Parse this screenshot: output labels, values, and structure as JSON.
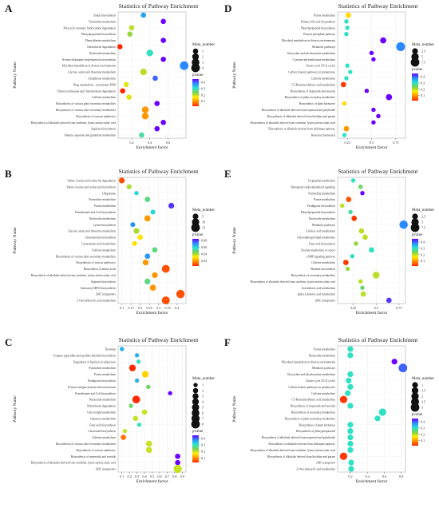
{
  "figure": {
    "background": "#ffffff"
  },
  "common": {
    "title": "Statistics of Pathway Enrichment",
    "xlabel": "Enrichment factor",
    "ylabel": "Pathway Name",
    "size_legend_title": "Meta_number",
    "color_legend_title": "pvalue",
    "color_scale": [
      "#ff2a00",
      "#ff8c00",
      "#ffee00",
      "#7ad151",
      "#29e3d0",
      "#2a8cff",
      "#6a00ff"
    ]
  },
  "chart_data": [
    {
      "panel": "A",
      "type": "scatter",
      "title": "Statistics of Pathway Enrichment",
      "xlabel": "Enrichment factor",
      "ylabel": "Pathway Name",
      "xlim": [
        0.05,
        0.8
      ],
      "xticks": [
        0.2,
        0.4,
        0.6
      ],
      "size_legend": {
        "title": "Meta_number",
        "values": [
          1,
          2,
          3,
          4
        ]
      },
      "color_legend": {
        "title": "pvalue",
        "min": 0.02,
        "max": 0.45,
        "ticks": [
          0.1,
          0.2,
          0.3,
          0.4
        ]
      },
      "categories": [
        "Zeatin biosynthesis",
        "Pyrimidine metabolism",
        "Polycyclic aromatic hydrocarbon degradation",
        "Phenylpropanoid biosynthesis",
        "Phenylalanine metabolism",
        "Nitrotoluene degradation",
        "Nucleotide metabolism",
        "Neomycin/kanamycin/gentamicin biosynthesis",
        "Microbial metabolism in diverse environments",
        "Glycine, serine and threonine metabolism",
        "Glutathione metabolism",
        "Drug metabolism - cytochrome P450",
        "Chlorocyclohexane and chlorobenzene degradation",
        "Caffeine metabolism",
        "Biosynthesis of various plant secondary metabolites",
        "Biosynthesis of various other secondary metabolites",
        "Biosynthesis of various antibiotics",
        "Biosynthesis of alkaloids derived from ornithine, lysine and nicotinic acid",
        "Arginine biosynthesis",
        "Alanine, aspartate and glutamate metabolism"
      ],
      "points": [
        {
          "x": 0.33,
          "size": 1,
          "p": 0.36
        },
        {
          "x": 0.55,
          "size": 1,
          "p": 0.45
        },
        {
          "x": 0.2,
          "size": 1,
          "p": 0.2
        },
        {
          "x": 0.18,
          "size": 1,
          "p": 0.22
        },
        {
          "x": 0.55,
          "size": 1,
          "p": 0.45
        },
        {
          "x": 0.07,
          "size": 1,
          "p": 0.02
        },
        {
          "x": 0.4,
          "size": 2,
          "p": 0.3
        },
        {
          "x": 0.55,
          "size": 1,
          "p": 0.45
        },
        {
          "x": 0.78,
          "size": 4,
          "p": 0.38
        },
        {
          "x": 0.33,
          "size": 2,
          "p": 0.2
        },
        {
          "x": 0.46,
          "size": 1,
          "p": 0.4
        },
        {
          "x": 0.14,
          "size": 1,
          "p": 0.18
        },
        {
          "x": 0.1,
          "size": 1,
          "p": 0.02
        },
        {
          "x": 0.17,
          "size": 1,
          "p": 0.18
        },
        {
          "x": 0.48,
          "size": 1,
          "p": 0.45
        },
        {
          "x": 0.35,
          "size": 2,
          "p": 0.1
        },
        {
          "x": 0.35,
          "size": 2,
          "p": 0.1
        },
        {
          "x": 0.55,
          "size": 1,
          "p": 0.45
        },
        {
          "x": 0.48,
          "size": 1,
          "p": 0.45
        },
        {
          "x": 0.31,
          "size": 1,
          "p": 0.28
        }
      ]
    },
    {
      "panel": "B",
      "type": "scatter",
      "title": "Statistics of Pathway Enrichment",
      "xlabel": "Enrichment factor",
      "ylabel": "Pathway Name",
      "xlim": [
        0.08,
        0.45
      ],
      "xticks": [
        0.1,
        0.15,
        0.2,
        0.25,
        0.3,
        0.35,
        0.4
      ],
      "size_legend": {
        "title": "Meta_number",
        "values": [
          5,
          10,
          15
        ]
      },
      "color_legend": {
        "title": "pvalue",
        "min": 0.005,
        "max": 0.085,
        "ticks": [
          0.02,
          0.04,
          0.06,
          0.08
        ]
      },
      "categories": [
        "Valine, leucine and isoleucine degradation",
        "Valine, leucine and isoleucine biosynthesis",
        "Ubiquinone",
        "Pyrimidine metabolism",
        "Purine metabolism",
        "Pantothenate and CoA biosynthesis",
        "Nucleotide metabolism",
        "Lysine biosynthesis",
        "Glycine, serine and threonine metabolism",
        "Glucosinolate biosynthesis",
        "Cyanoamino acid metabolism",
        "Caffeine metabolism",
        "Biosynthesis of various other secondary metabolites",
        "Biosynthesis of various antibiotics",
        "Biosynthesis of amino acids",
        "Biosynthesis of alkaloids derived from ornithine, lysine and nicotinic acid",
        "Arginine biosynthesis",
        "Aminoacyl-tRNA biosynthesis",
        "ABC transporters",
        "2-Oxocarboxylic acid metabolism"
      ],
      "points": [
        {
          "x": 0.1,
          "size": 5,
          "p": 0.01
        },
        {
          "x": 0.14,
          "size": 3,
          "p": 0.04
        },
        {
          "x": 0.18,
          "size": 2,
          "p": 0.06
        },
        {
          "x": 0.24,
          "size": 4,
          "p": 0.05
        },
        {
          "x": 0.37,
          "size": 5,
          "p": 0.08
        },
        {
          "x": 0.27,
          "size": 3,
          "p": 0.06
        },
        {
          "x": 0.24,
          "size": 6,
          "p": 0.02
        },
        {
          "x": 0.16,
          "size": 3,
          "p": 0.07
        },
        {
          "x": 0.18,
          "size": 5,
          "p": 0.04
        },
        {
          "x": 0.2,
          "size": 4,
          "p": 0.03
        },
        {
          "x": 0.17,
          "size": 3,
          "p": 0.03
        },
        {
          "x": 0.28,
          "size": 4,
          "p": 0.05
        },
        {
          "x": 0.24,
          "size": 4,
          "p": 0.07
        },
        {
          "x": 0.23,
          "size": 5,
          "p": 0.02
        },
        {
          "x": 0.34,
          "size": 12,
          "p": 0.01
        },
        {
          "x": 0.28,
          "size": 5,
          "p": 0.02
        },
        {
          "x": 0.24,
          "size": 5,
          "p": 0.05
        },
        {
          "x": 0.27,
          "size": 6,
          "p": 0.02
        },
        {
          "x": 0.42,
          "size": 14,
          "p": 0.01
        },
        {
          "x": 0.34,
          "size": 12,
          "p": 0.01
        }
      ]
    },
    {
      "panel": "C",
      "type": "scatter",
      "title": "Statistics of Pathway Enrichment",
      "xlabel": "Enrichment factor",
      "ylabel": "Pathway Name",
      "xlim": [
        0.05,
        0.95
      ],
      "xticks": [
        0.1,
        0.2,
        0.3,
        0.4,
        0.5,
        0.6,
        0.7,
        0.8,
        0.9
      ],
      "size_legend": {
        "title": "Meta_number",
        "values": [
          1,
          2,
          3,
          4,
          5,
          6,
          7,
          8
        ]
      },
      "color_legend": {
        "title": "pvalue",
        "min": 0.03,
        "max": 0.45,
        "ticks": [
          0.1,
          0.2,
          0.3,
          0.4
        ]
      },
      "categories": [
        "Thiamine",
        "Tropane, piperidine and pyridine alkaloid biosynthesis",
        "Regulation of lipolysis in adipocytes",
        "Pyrimidine metabolism",
        "Purine metabolism",
        "Prodigiosin biosynthesis",
        "Pentose and glucuronate interconversions",
        "Pantothenate and CoA biosynthesis",
        "Nucleotide metabolism",
        "Nitrotoluene degradation",
        "Glycerolipid metabolism",
        "Galactose metabolism",
        "Fatty acid biosynthesis",
        "Carotenoid biosynthesis",
        "Caffeine metabolism",
        "Biosynthesis of various other secondary metabolites",
        "Biosynthesis of various antibiotics",
        "Biosynthesis of terpenoids and steroids",
        "Biosynthesis of alkaloids derived from ornithine, lysine and nicotinic acid",
        "ABC transporters"
      ],
      "points": [
        {
          "x": 0.1,
          "size": 1,
          "p": 0.35
        },
        {
          "x": 0.3,
          "size": 1,
          "p": 0.35
        },
        {
          "x": 0.32,
          "size": 1,
          "p": 0.3
        },
        {
          "x": 0.24,
          "size": 4,
          "p": 0.03
        },
        {
          "x": 0.41,
          "size": 4,
          "p": 0.15
        },
        {
          "x": 0.3,
          "size": 1,
          "p": 0.35
        },
        {
          "x": 0.45,
          "size": 1,
          "p": 0.25
        },
        {
          "x": 0.74,
          "size": 1,
          "p": 0.45
        },
        {
          "x": 0.29,
          "size": 6,
          "p": 0.03
        },
        {
          "x": 0.22,
          "size": 1,
          "p": 0.25
        },
        {
          "x": 0.4,
          "size": 2,
          "p": 0.2
        },
        {
          "x": 0.28,
          "size": 2,
          "p": 0.2
        },
        {
          "x": 0.33,
          "size": 1,
          "p": 0.3
        },
        {
          "x": 0.14,
          "size": 1,
          "p": 0.2
        },
        {
          "x": 0.12,
          "size": 2,
          "p": 0.08
        },
        {
          "x": 0.46,
          "size": 3,
          "p": 0.2
        },
        {
          "x": 0.46,
          "size": 3,
          "p": 0.2
        },
        {
          "x": 0.84,
          "size": 2,
          "p": 0.45
        },
        {
          "x": 0.84,
          "size": 2,
          "p": 0.45
        },
        {
          "x": 0.84,
          "size": 7,
          "p": 0.2
        }
      ]
    },
    {
      "panel": "D",
      "type": "scatter",
      "title": "Statistics of Pathway Enrichment",
      "xlabel": "Enrichment factor",
      "ylabel": "Pathway Name",
      "xlim": [
        0.15,
        0.85
      ],
      "xticks": [
        0.25,
        0.5,
        0.75
      ],
      "size_legend": {
        "title": "Meta_number",
        "values": [
          2.5,
          5.0,
          7.5
        ]
      },
      "color_legend": {
        "title": "pvalue",
        "min": 0.02,
        "max": 0.45,
        "ticks": [
          0.1,
          0.2,
          0.3,
          0.4
        ]
      },
      "categories": [
        "Purine metabolism",
        "Primary bile acid biosynthesis",
        "Phenylpropanoid biosynthesis",
        "Pentose phosphate pathway",
        "Microbial metabolism in diverse environments",
        "Metabolic pathways",
        "Glyoxylate and dicarboxylate metabolism",
        "Cysteine and methionine metabolism",
        "Citrate cycle (TCA cycle)",
        "Carbon fixation pathways in prokaryotes",
        "Caffeine metabolism",
        "C5-Branched dibasic acid metabolism",
        "Biosynthesis of terpenoids and steroids",
        "Biosynthesis of plant secondary metabolites",
        "Biosynthesis of plant hormones",
        "Biosynthesis of alkaloids derived from terpenoid and polyketide",
        "Biosynthesis of alkaloids derived from histidine and purine",
        "Biosynthesis of alkaloids derived from ornithine, lysine and nicotinic acid",
        "Biosynthesis of alkaloids derived from shikimate pathway",
        "Bacterial chemotaxis"
      ],
      "points": [
        {
          "x": 0.26,
          "size": 2,
          "p": 0.15
        },
        {
          "x": 0.24,
          "size": 1,
          "p": 0.3
        },
        {
          "x": 0.25,
          "size": 1,
          "p": 0.3
        },
        {
          "x": 0.24,
          "size": 1,
          "p": 0.3
        },
        {
          "x": 0.62,
          "size": 3,
          "p": 0.45
        },
        {
          "x": 0.8,
          "size": 8,
          "p": 0.38
        },
        {
          "x": 0.5,
          "size": 1,
          "p": 0.45
        },
        {
          "x": 0.52,
          "size": 1,
          "p": 0.45
        },
        {
          "x": 0.25,
          "size": 1,
          "p": 0.3
        },
        {
          "x": 0.28,
          "size": 1,
          "p": 0.3
        },
        {
          "x": 0.24,
          "size": 1,
          "p": 0.3
        },
        {
          "x": 0.21,
          "size": 2,
          "p": 0.03
        },
        {
          "x": 0.45,
          "size": 1,
          "p": 0.45
        },
        {
          "x": 0.68,
          "size": 3,
          "p": 0.45
        },
        {
          "x": 0.22,
          "size": 1,
          "p": 0.15
        },
        {
          "x": 0.52,
          "size": 1,
          "p": 0.45
        },
        {
          "x": 0.57,
          "size": 1,
          "p": 0.45
        },
        {
          "x": 0.52,
          "size": 1,
          "p": 0.45
        },
        {
          "x": 0.24,
          "size": 2,
          "p": 0.1
        },
        {
          "x": 0.22,
          "size": 1,
          "p": 0.3
        }
      ]
    },
    {
      "panel": "E",
      "type": "scatter",
      "title": "Statistics of Pathway Enrichment",
      "xlabel": "Enrichment factor",
      "ylabel": "Pathway Name",
      "xlim": [
        0.08,
        0.82
      ],
      "xticks": [
        0.25,
        0.5,
        0.75
      ],
      "size_legend": {
        "title": "Meta_number",
        "values": [
          2.5,
          5.0,
          7.5
        ]
      },
      "color_legend": {
        "title": "pvalue",
        "min": 0.02,
        "max": 0.45,
        "ticks": [
          0.1,
          0.2,
          0.3,
          0.4
        ]
      },
      "categories": [
        "Tryptophan metabolism",
        "Retrograde endocannabinoid signaling",
        "Pyrimidine metabolism",
        "Purine metabolism",
        "Prodigiosin biosynthesis",
        "Phenylpropanoid biosynthesis",
        "Nucleotide metabolism",
        "Metabolic pathways",
        "Linoleic acid metabolism",
        "Glycerophospholipid metabolism",
        "Fatty acid biosynthesis",
        "Choline metabolism in cancer",
        "cAMP signaling pathway",
        "Caffeine metabolism",
        "Betalain biosynthesis",
        "Biosynthesis of secondary metabolites",
        "Biosynthesis of alkaloids derived from ornithine, lysine and nicotinic acid",
        "Arachidonic acid metabolism",
        "alpha-Linolenic acid metabolism",
        "ABC transporters"
      ],
      "points": [
        {
          "x": 0.25,
          "size": 1,
          "p": 0.3
        },
        {
          "x": 0.33,
          "size": 1,
          "p": 0.25
        },
        {
          "x": 0.35,
          "size": 1,
          "p": 0.45
        },
        {
          "x": 0.2,
          "size": 2,
          "p": 0.05
        },
        {
          "x": 0.13,
          "size": 1,
          "p": 0.2
        },
        {
          "x": 0.22,
          "size": 1,
          "p": 0.28
        },
        {
          "x": 0.26,
          "size": 2,
          "p": 0.03
        },
        {
          "x": 0.8,
          "size": 7,
          "p": 0.38
        },
        {
          "x": 0.34,
          "size": 2,
          "p": 0.2
        },
        {
          "x": 0.38,
          "size": 2,
          "p": 0.2
        },
        {
          "x": 0.28,
          "size": 1,
          "p": 0.22
        },
        {
          "x": 0.45,
          "size": 2,
          "p": 0.3
        },
        {
          "x": 0.24,
          "size": 1,
          "p": 0.3
        },
        {
          "x": 0.17,
          "size": 2,
          "p": 0.03
        },
        {
          "x": 0.19,
          "size": 1,
          "p": 0.22
        },
        {
          "x": 0.5,
          "size": 4,
          "p": 0.2
        },
        {
          "x": 0.33,
          "size": 1,
          "p": 0.2
        },
        {
          "x": 0.35,
          "size": 1,
          "p": 0.25
        },
        {
          "x": 0.36,
          "size": 2,
          "p": 0.2
        },
        {
          "x": 0.64,
          "size": 2,
          "p": 0.42
        }
      ]
    },
    {
      "panel": "F",
      "type": "scatter",
      "title": "Statistics of Pathway Enrichment",
      "xlabel": "Enrichment factor",
      "ylabel": "Pathway Name",
      "xlim": [
        0.05,
        0.85
      ],
      "xticks": [
        0.2,
        0.4,
        0.6,
        0.8
      ],
      "size_legend": {
        "title": "Meta_number",
        "values": [
          1.0,
          1.5,
          2.0,
          2.5,
          3.0
        ]
      },
      "color_legend": {
        "title": "pvalue",
        "min": 0.02,
        "max": 0.45,
        "ticks": [
          0.1,
          0.2,
          0.3,
          0.4
        ]
      },
      "categories": [
        "Purine metabolism",
        "Nucleotide metabolism",
        "Microbial metabolism in diverse environments",
        "Metabolic pathways",
        "Glyoxylate and dicarboxylate metabolism",
        "Citrate cycle (TCA cycle)",
        "Carbon fixation pathways in prokaryotes",
        "Caffeine metabolism",
        "C5-Branched dibasic acid metabolism",
        "Biosynthesis of terpenoids and steroids",
        "Biosynthesis of secondary metabolites",
        "Biosynthesis of plant secondary metabolites",
        "Biosynthesis of plant hormones",
        "Biosynthesis of phenylpropanoids",
        "Biosynthesis of alkaloids derived from terpenoid and polyketide",
        "Biosynthesis of alkaloids derived from shikimate pathway",
        "Biosynthesis of alkaloids derived from ornithine, lysine and nicotinic acid",
        "Biosynthesis of alkaloids derived from histidine and purine",
        "ABC transporter",
        "2-Oxocarboxylic acid metabolism"
      ],
      "points": [
        {
          "x": 0.2,
          "size": 1,
          "p": 0.3
        },
        {
          "x": 0.2,
          "size": 1,
          "p": 0.3
        },
        {
          "x": 0.72,
          "size": 1,
          "p": 0.45
        },
        {
          "x": 0.82,
          "size": 3,
          "p": 0.4
        },
        {
          "x": 0.2,
          "size": 1,
          "p": 0.3
        },
        {
          "x": 0.18,
          "size": 1,
          "p": 0.3
        },
        {
          "x": 0.2,
          "size": 1,
          "p": 0.3
        },
        {
          "x": 0.17,
          "size": 1,
          "p": 0.3
        },
        {
          "x": 0.12,
          "size": 2,
          "p": 0.03
        },
        {
          "x": 0.2,
          "size": 1,
          "p": 0.3
        },
        {
          "x": 0.58,
          "size": 2,
          "p": 0.3
        },
        {
          "x": 0.52,
          "size": 1,
          "p": 0.3
        },
        {
          "x": 0.2,
          "size": 1,
          "p": 0.3
        },
        {
          "x": 0.2,
          "size": 1,
          "p": 0.3
        },
        {
          "x": 0.2,
          "size": 1,
          "p": 0.3
        },
        {
          "x": 0.2,
          "size": 1,
          "p": 0.3
        },
        {
          "x": 0.2,
          "size": 1,
          "p": 0.3
        },
        {
          "x": 0.12,
          "size": 2,
          "p": 0.03
        },
        {
          "x": 0.21,
          "size": 1,
          "p": 0.3
        },
        {
          "x": 0.21,
          "size": 1,
          "p": 0.3
        }
      ]
    }
  ]
}
